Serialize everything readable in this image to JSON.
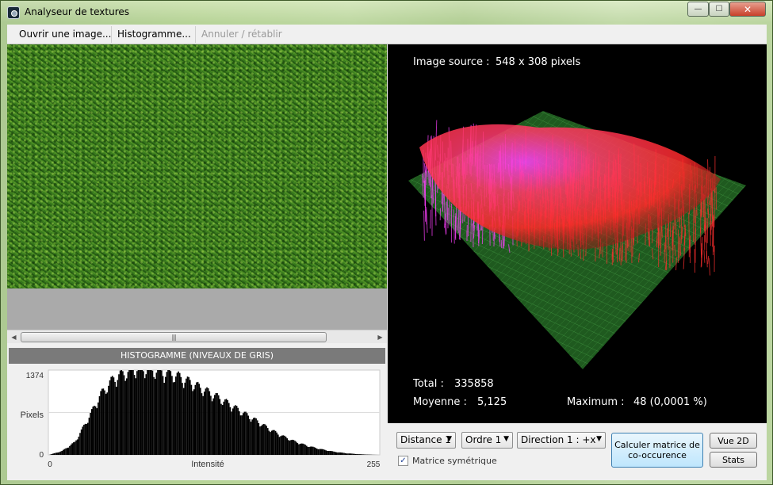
{
  "window": {
    "title": "Analyseur de textures",
    "min_glyph": "—",
    "max_glyph": "☐",
    "close_glyph": "✕"
  },
  "toolbar": {
    "open_label": "Ouvrir une image...",
    "histogram_label": "Histogramme...",
    "undo_label": "Annuler / rétablir"
  },
  "scrollbar": {
    "left_arrow": "◀",
    "right_arrow": "▶",
    "thumb_grip": "|||"
  },
  "histogram": {
    "header": "HISTOGRAMME (NIVEAUX DE GRIS)",
    "ymax_label": "1374",
    "ymin_label": "0",
    "ylabel": "Pixels",
    "xmin_label": "0",
    "xmax_label": "255",
    "xlabel": "Intensité"
  },
  "chart_data": {
    "type": "bar",
    "x_range": [
      0,
      255
    ],
    "ylim": [
      0,
      1374
    ],
    "xlabel": "Intensité",
    "ylabel": "Pixels",
    "title": "HISTOGRAMME (NIVEAUX DE GRIS)",
    "grid": true,
    "series": [
      {
        "x": [
          0,
          10,
          20,
          30,
          40,
          50,
          60,
          70,
          80,
          90,
          100,
          110,
          120,
          130,
          140,
          150,
          160,
          170,
          180,
          190,
          200,
          210,
          220,
          230,
          240,
          250,
          255
        ],
        "values": [
          0,
          60,
          200,
          560,
          950,
          1200,
          1300,
          1374,
          1330,
          1290,
          1230,
          1130,
          1020,
          910,
          790,
          660,
          540,
          410,
          300,
          210,
          140,
          90,
          50,
          25,
          10,
          2,
          0
        ]
      }
    ]
  },
  "viewer": {
    "source_label": "Image source :",
    "source_value": "548 x 308 pixels",
    "total_label": "Total :",
    "total_value": "335858",
    "mean_label": "Moyenne :",
    "mean_value": "5,125",
    "max_label": "Maximum :",
    "max_value": "48 (0,0001 %)"
  },
  "controls": {
    "distance_value": "Distance 1",
    "ordre_value": "Ordre 1",
    "direction_value": "Direction 1 : +x",
    "arrow_glyph": "▼",
    "sym_checked": "✓",
    "sym_label": "Matrice symétrique",
    "compute_label": "Calculer matrice de co-occurence",
    "vue2d_label": "Vue 2D",
    "stats_label": "Stats"
  },
  "colors": {
    "plane": "#1f5a1f",
    "plane_grid": "#3a8a3a",
    "surface_low": "#ff3030",
    "surface_high": "#ff40ff",
    "histo_bar": "#000000"
  }
}
